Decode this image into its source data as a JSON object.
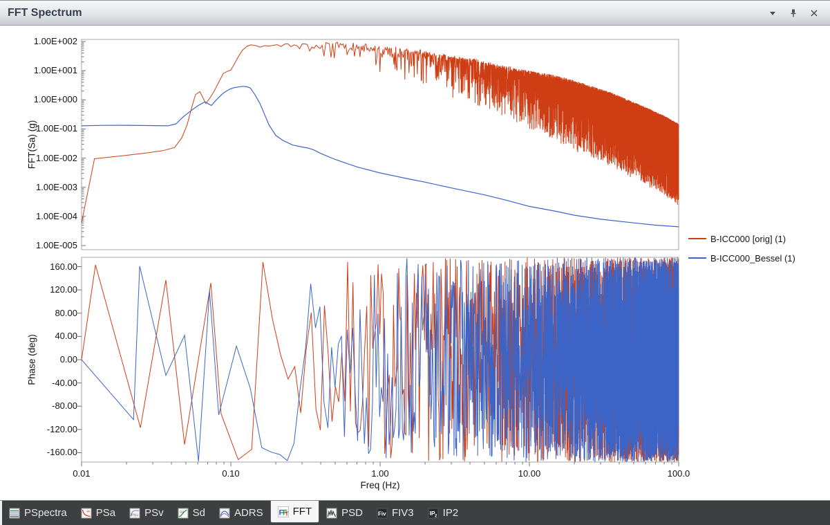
{
  "panel": {
    "title": "FFT Spectrum",
    "titlebar_icons": [
      "dropdown-arrow-icon",
      "pin-icon",
      "close-icon"
    ]
  },
  "legend": {
    "items": [
      {
        "label": "B-ICC000 [orig]  (1)",
        "color": "#cf3d14"
      },
      {
        "label": "B-ICC000_Bessel (1)",
        "color": "#3c64c6"
      }
    ]
  },
  "chart_data": [
    {
      "id": "fft-magnitude",
      "type": "line",
      "title": "",
      "xlabel": "",
      "ylabel": "FFT(Sa) (g)",
      "x_scale": "log",
      "y_scale": "log",
      "xlim": [
        0.01,
        100
      ],
      "ylim": [
        1e-05,
        100
      ],
      "grid": false,
      "legend_position": "right",
      "y_tick_labels": [
        "1.00E+002",
        "1.00E+001",
        "1.00E+000",
        "1.00E-001",
        "1.00E-002",
        "1.00E-003",
        "1.00E-004",
        "1.00E-005"
      ],
      "series": [
        {
          "name": "B-ICC000 [orig]  (1)",
          "color": "#cf3d14",
          "smooth_points": [
            [
              0.01,
              6e-05
            ],
            [
              0.0122,
              0.0095
            ],
            [
              0.0187,
              0.012
            ],
            [
              0.027,
              0.015
            ],
            [
              0.035,
              0.018
            ],
            [
              0.042,
              0.023
            ],
            [
              0.047,
              0.05
            ],
            [
              0.051,
              0.14
            ],
            [
              0.055,
              0.6
            ],
            [
              0.058,
              1.5
            ],
            [
              0.062,
              1.9
            ],
            [
              0.068,
              0.75
            ],
            [
              0.072,
              1.1
            ],
            [
              0.077,
              1.9
            ],
            [
              0.083,
              4
            ],
            [
              0.089,
              8
            ],
            [
              0.095,
              9.5
            ],
            [
              0.1,
              10.5
            ],
            [
              0.105,
              16
            ],
            [
              0.11,
              25
            ],
            [
              0.119,
              49
            ],
            [
              0.128,
              68
            ],
            [
              0.136,
              77
            ],
            [
              0.148,
              72
            ],
            [
              0.157,
              64
            ]
          ],
          "noise_region": {
            "f_start": 0.157,
            "f_end": 100,
            "df": 0.012,
            "seed": 101,
            "top_envelope": [
              [
                0.157,
                64
              ],
              [
                0.18,
                70
              ],
              [
                0.22,
                76
              ],
              [
                0.3,
                80
              ],
              [
                0.4,
                84
              ],
              [
                0.55,
                88
              ],
              [
                0.7,
                80
              ],
              [
                0.85,
                70
              ],
              [
                1.0,
                62
              ],
              [
                1.3,
                58
              ],
              [
                1.7,
                50
              ],
              [
                2.2,
                40
              ],
              [
                3,
                30
              ],
              [
                4.5,
                22
              ],
              [
                6,
                15
              ],
              [
                10,
                9
              ],
              [
                15,
                6
              ],
              [
                22,
                3.5
              ],
              [
                35,
                1.6
              ],
              [
                55,
                0.6
              ],
              [
                80,
                0.25
              ],
              [
                100,
                0.13
              ]
            ],
            "spike_depth": [
              [
                0.157,
                0.1
              ],
              [
                0.25,
                0.2
              ],
              [
                0.4,
                0.45
              ],
              [
                0.6,
                0.7
              ],
              [
                1,
                0.95
              ],
              [
                1.5,
                1.1
              ],
              [
                2.5,
                1.3
              ],
              [
                4,
                1.5
              ],
              [
                7,
                1.7
              ],
              [
                12,
                2.1
              ],
              [
                20,
                2.3
              ],
              [
                40,
                2.5
              ],
              [
                70,
                2.6
              ],
              [
                100,
                2.7
              ]
            ]
          }
        },
        {
          "name": "B-ICC000_Bessel (1)",
          "color": "#3c64c6",
          "smooth_points": [
            [
              0.01,
              0.128
            ],
            [
              0.014,
              0.133
            ],
            [
              0.02,
              0.134
            ],
            [
              0.028,
              0.131
            ],
            [
              0.038,
              0.128
            ],
            [
              0.043,
              0.15
            ],
            [
              0.048,
              0.26
            ],
            [
              0.054,
              0.42
            ],
            [
              0.06,
              0.62
            ],
            [
              0.067,
              0.85
            ],
            [
              0.071,
              0.72
            ],
            [
              0.074,
              0.64
            ],
            [
              0.08,
              1.0
            ],
            [
              0.089,
              1.7
            ],
            [
              0.098,
              2.3
            ],
            [
              0.105,
              2.6
            ],
            [
              0.112,
              2.75
            ],
            [
              0.12,
              2.9
            ],
            [
              0.128,
              2.8
            ],
            [
              0.135,
              2.55
            ],
            [
              0.145,
              1.5
            ],
            [
              0.157,
              0.73
            ],
            [
              0.18,
              0.14
            ],
            [
              0.2,
              0.06
            ],
            [
              0.224,
              0.04
            ],
            [
              0.26,
              0.028
            ],
            [
              0.3,
              0.024
            ],
            [
              0.33,
              0.022
            ],
            [
              0.36,
              0.019
            ],
            [
              0.4,
              0.0145
            ],
            [
              0.5,
              0.009
            ],
            [
              0.7,
              0.005
            ],
            [
              1.0,
              0.0031
            ],
            [
              1.5,
              0.002
            ],
            [
              2.0,
              0.0015
            ],
            [
              3.0,
              0.00095
            ],
            [
              5.0,
              0.00055
            ],
            [
              7.0,
              0.00036
            ],
            [
              10.0,
              0.00022
            ],
            [
              15.0,
              0.00015
            ],
            [
              20.0,
              0.00011
            ],
            [
              30.0,
              8e-05
            ],
            [
              50.0,
              6e-05
            ],
            [
              70.0,
              5e-05
            ],
            [
              100.0,
              4.4e-05
            ]
          ]
        }
      ]
    },
    {
      "id": "fft-phase",
      "type": "line",
      "title": "",
      "xlabel": "Freq (Hz)",
      "ylabel": "Phase (deg)",
      "x_scale": "log",
      "y_scale": "linear",
      "xlim": [
        0.01,
        100
      ],
      "ylim": [
        -176,
        176
      ],
      "grid": false,
      "x_tick_labels": [
        "0.01",
        "0.10",
        "1.00",
        "10.00",
        "100.0"
      ],
      "x_tick_values": [
        0.01,
        0.1,
        1,
        10,
        100
      ],
      "y_tick_labels": [
        "160.00",
        "120.00",
        "80.00",
        "40.00",
        "0.00",
        "-40.00",
        "-80.00",
        "-120.00",
        "-160.00"
      ],
      "y_tick_values": [
        160,
        120,
        80,
        40,
        0,
        -40,
        -80,
        -120,
        -160
      ],
      "series": [
        {
          "name": "B-ICC000 [orig]  (1)",
          "color": "#cf3d14",
          "lead_points": [
            [
              0.01,
              0
            ],
            [
              0.0124,
              163
            ],
            [
              0.0248,
              -117
            ],
            [
              0.0367,
              137
            ],
            [
              0.049,
              -146
            ],
            [
              0.0735,
              132
            ],
            [
              0.086,
              -93
            ]
          ],
          "random_region": {
            "f_start": 0.086,
            "f_end": 100,
            "df": 0.026,
            "range": [
              -176,
              176
            ],
            "seed": 7
          }
        },
        {
          "name": "B-ICC000_Bessel (1)",
          "color": "#3c64c6",
          "lead_points": [
            [
              0.01,
              0
            ],
            [
              0.0223,
              -103
            ],
            [
              0.0245,
              161
            ],
            [
              0.0367,
              -27
            ],
            [
              0.049,
              42
            ],
            [
              0.0607,
              -175
            ],
            [
              0.072,
              119
            ],
            [
              0.083,
              -95
            ]
          ],
          "random_region": {
            "f_start": 0.083,
            "f_end": 100,
            "df": 0.026,
            "range": [
              -176,
              176
            ],
            "seed": 13
          }
        }
      ]
    }
  ],
  "tabs": [
    {
      "label": "PSpectra",
      "icon": "pspectra-icon",
      "selected": false
    },
    {
      "label": "PSa",
      "icon": "psa-icon",
      "selected": false
    },
    {
      "label": "PSv",
      "icon": "psv-icon",
      "selected": false
    },
    {
      "label": "Sd",
      "icon": "sd-icon",
      "selected": false
    },
    {
      "label": "ADRS",
      "icon": "adrs-icon",
      "selected": false
    },
    {
      "label": "FFT",
      "icon": "fft-icon",
      "selected": true
    },
    {
      "label": "PSD",
      "icon": "psd-icon",
      "selected": false
    },
    {
      "label": "FIV3",
      "icon": "fiv3-icon",
      "selected": false
    },
    {
      "label": "IP2",
      "icon": "ip2-icon",
      "selected": false
    }
  ]
}
